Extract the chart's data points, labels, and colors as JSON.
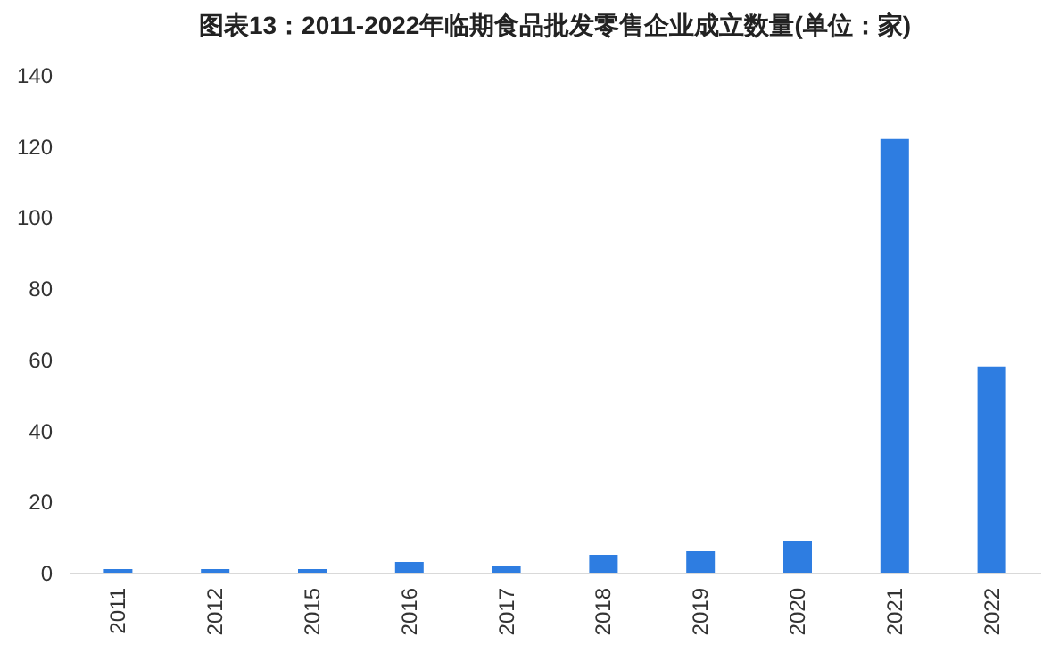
{
  "chart_data": {
    "type": "bar",
    "title": "图表13：2011-2022年临期食品批发零售企业成立数量(单位：家)",
    "categories": [
      "2011",
      "2012",
      "2015",
      "2016",
      "2017",
      "2018",
      "2019",
      "2020",
      "2021",
      "2022"
    ],
    "values": [
      1,
      1,
      1,
      3,
      2,
      5,
      6,
      9,
      122,
      58
    ],
    "color": "#2e7de1",
    "ylim": [
      0,
      140
    ],
    "yticks": [
      0,
      20,
      40,
      60,
      80,
      100,
      120,
      140
    ],
    "grid": false
  }
}
